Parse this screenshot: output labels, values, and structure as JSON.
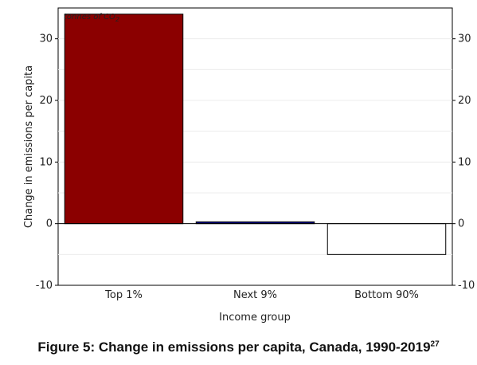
{
  "chart_data": {
    "type": "bar",
    "unit_note": "tonnes of CO",
    "unit_note_sub": "2",
    "xlabel": "Income group",
    "ylabel": "Change in emissions per capita",
    "categories": [
      "Top 1%",
      "Next 9%",
      "Bottom 90%"
    ],
    "values": [
      34,
      0.3,
      -5
    ],
    "bar_colors": [
      "#8b0000",
      "#000080",
      "#ffffff"
    ],
    "ylim": [
      -10,
      35
    ],
    "yticks": [
      -10,
      0,
      10,
      20,
      30
    ],
    "grid": true,
    "secondary_y_axis": true
  },
  "caption": {
    "text": "Figure 5: Change in emissions per capita, Canada, 1990-2019",
    "footnote": "27"
  }
}
